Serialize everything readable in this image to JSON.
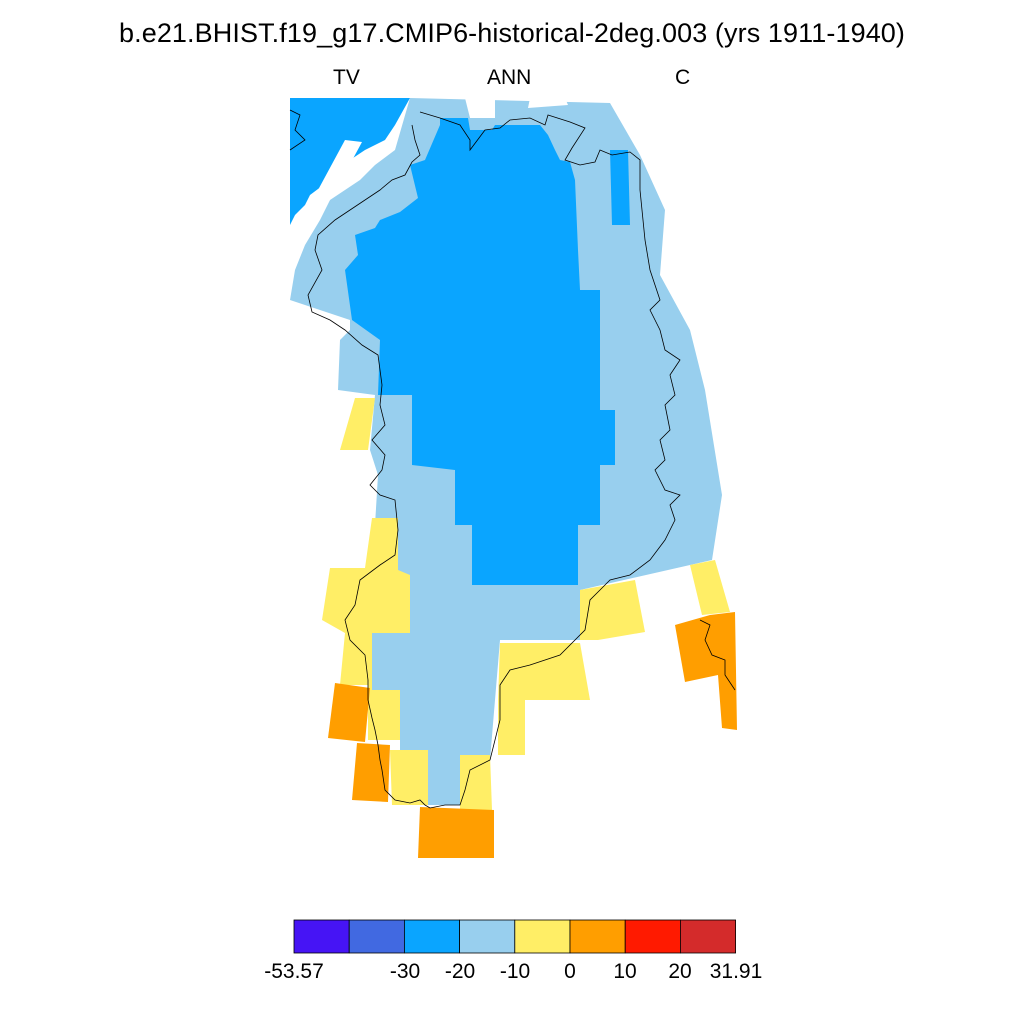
{
  "title": "b.e21.BHIST.f19_g17.CMIP6-historical-2deg.003 (yrs 1911-1940)",
  "subtitle": {
    "left": "TV",
    "center": "ANN",
    "right": "C"
  },
  "colorbar": {
    "colors": [
      "#4614f5",
      "#4169e1",
      "#0aa5ff",
      "#98cfee",
      "#ffee66",
      "#ff9e00",
      "#ff1a00",
      "#d42b2b"
    ],
    "labels": [
      "-53.57",
      "-30",
      "-20",
      "-10",
      "0",
      "10",
      "20",
      "31.91"
    ]
  },
  "map_colors": {
    "c_minus_20_30": "#0aa5ff",
    "c_minus_10_20": "#98cfee",
    "c_0_10": "#ffee66",
    "c_10_20": "#ff9e00"
  }
}
